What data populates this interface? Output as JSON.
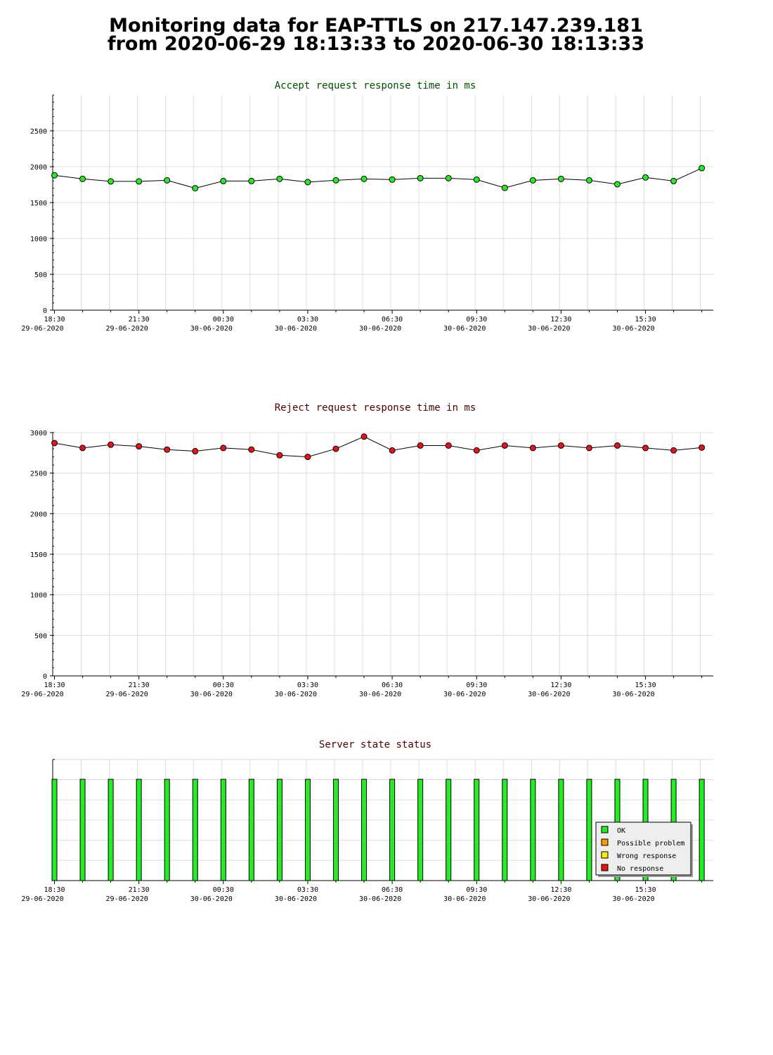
{
  "page": {
    "title_line1": "Monitoring data for EAP-TTLS on 217.147.239.181",
    "title_line2": "from 2020-06-29 18:13:33 to 2020-06-30 18:13:33"
  },
  "colors": {
    "accept_title": "#005000",
    "reject_title": "#500000",
    "status_title": "#500000",
    "accept_marker": "#22ee22",
    "reject_marker": "#ee1111",
    "status_bar": "#22ee22",
    "grid": "#dddddd"
  },
  "time_axis": {
    "ticks": [
      {
        "time": "18:30",
        "date": "29-06-2020"
      },
      {
        "time": "21:30",
        "date": "29-06-2020"
      },
      {
        "time": "00:30",
        "date": "30-06-2020"
      },
      {
        "time": "03:30",
        "date": "30-06-2020"
      },
      {
        "time": "06:30",
        "date": "30-06-2020"
      },
      {
        "time": "09:30",
        "date": "30-06-2020"
      },
      {
        "time": "12:30",
        "date": "30-06-2020"
      },
      {
        "time": "15:30",
        "date": "30-06-2020"
      }
    ]
  },
  "chart_data": [
    {
      "type": "line",
      "title": "Accept request response time in ms",
      "ylim": [
        0,
        3000
      ],
      "yticks": [
        0,
        500,
        1000,
        1500,
        2000,
        2500
      ],
      "grid": true,
      "x_hours_from_1830": [
        0,
        1,
        2,
        3,
        4,
        5,
        6,
        7,
        8,
        9,
        10,
        11,
        12,
        13,
        14,
        15,
        16,
        17,
        18,
        19,
        20,
        21,
        22,
        23
      ],
      "values": [
        1880,
        1830,
        1795,
        1795,
        1810,
        1700,
        1800,
        1800,
        1830,
        1785,
        1810,
        1830,
        1820,
        1840,
        1840,
        1820,
        1705,
        1810,
        1830,
        1810,
        1755,
        1850,
        1800,
        1980
      ]
    },
    {
      "type": "line",
      "title": "Reject request response time in ms",
      "ylim": [
        0,
        3000
      ],
      "yticks": [
        0,
        500,
        1000,
        1500,
        2000,
        2500,
        3000
      ],
      "grid": true,
      "x_hours_from_1830": [
        0,
        1,
        2,
        3,
        4,
        5,
        6,
        7,
        8,
        9,
        10,
        11,
        12,
        13,
        14,
        15,
        16,
        17,
        18,
        19,
        20,
        21,
        22,
        23
      ],
      "values": [
        2870,
        2810,
        2850,
        2830,
        2790,
        2770,
        2810,
        2790,
        2720,
        2700,
        2800,
        2950,
        2780,
        2840,
        2840,
        2780,
        2840,
        2810,
        2840,
        2810,
        2840,
        2810,
        2780,
        2815
      ]
    },
    {
      "type": "bar",
      "title": "Server state status",
      "x_hours_from_1830": [
        0,
        1,
        2,
        3,
        4,
        5,
        6,
        7,
        8,
        9,
        10,
        11,
        12,
        13,
        14,
        15,
        16,
        17,
        18,
        19,
        20,
        21,
        22,
        23
      ],
      "status": [
        "OK",
        "OK",
        "OK",
        "OK",
        "OK",
        "OK",
        "OK",
        "OK",
        "OK",
        "OK",
        "OK",
        "OK",
        "OK",
        "OK",
        "OK",
        "OK",
        "OK",
        "OK",
        "OK",
        "OK",
        "OK",
        "OK",
        "OK",
        "OK"
      ],
      "legend": [
        {
          "label": "OK",
          "color": "#22ee22"
        },
        {
          "label": "Possible problem",
          "color": "#ff9900"
        },
        {
          "label": "Wrong response",
          "color": "#ffee00"
        },
        {
          "label": "No response",
          "color": "#ee1111"
        }
      ],
      "legend_position": "bottom-right"
    }
  ]
}
